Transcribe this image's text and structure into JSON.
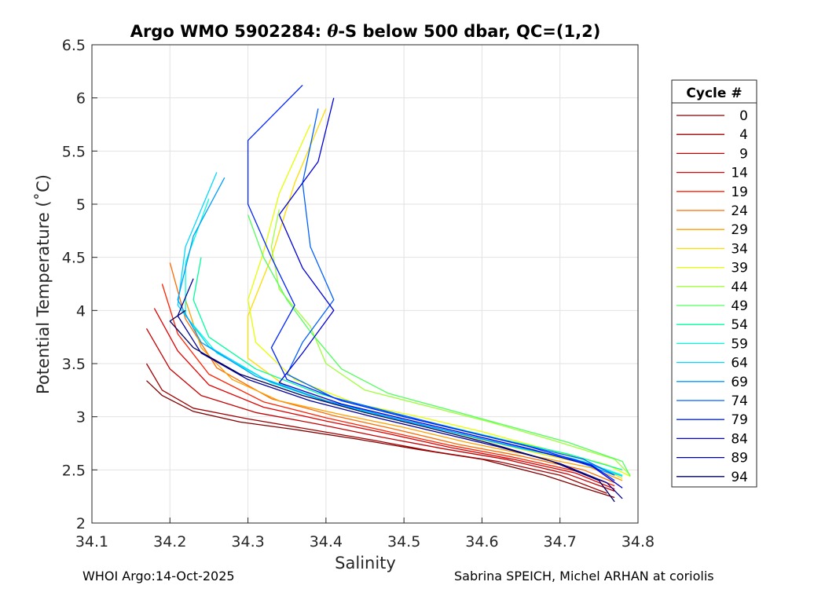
{
  "chart_data": {
    "type": "line",
    "title": {
      "prefix": "Argo WMO 5902284: ",
      "theta": "θ",
      "suffix": "-S below 500 dbar,  QC=(1,2)"
    },
    "xlabel": "Salinity",
    "ylabel": "Potential Temperature (˚C)",
    "xlim": [
      34.1,
      34.8
    ],
    "ylim": [
      2.0,
      6.5
    ],
    "xticks": [
      {
        "value": 34.1,
        "label": "34.1"
      },
      {
        "value": 34.2,
        "label": "34.2"
      },
      {
        "value": 34.3,
        "label": "34.3"
      },
      {
        "value": 34.4,
        "label": "34.4"
      },
      {
        "value": 34.5,
        "label": "34.5"
      },
      {
        "value": 34.6,
        "label": "34.6"
      },
      {
        "value": 34.7,
        "label": "34.7"
      },
      {
        "value": 34.8,
        "label": "34.8"
      }
    ],
    "yticks": [
      {
        "value": 2.0,
        "label": "2"
      },
      {
        "value": 2.5,
        "label": "2.5"
      },
      {
        "value": 3.0,
        "label": "3"
      },
      {
        "value": 3.5,
        "label": "3.5"
      },
      {
        "value": 4.0,
        "label": "4"
      },
      {
        "value": 4.5,
        "label": "4.5"
      },
      {
        "value": 5.0,
        "label": "5"
      },
      {
        "value": 5.5,
        "label": "5.5"
      },
      {
        "value": 6.0,
        "label": "6"
      },
      {
        "value": 6.5,
        "label": "6.5"
      }
    ],
    "grid": true,
    "legend_title": "Cycle #",
    "legend_position": "outside-right",
    "series": [
      {
        "name": "0",
        "color": "#800000",
        "points": [
          [
            34.17,
            3.34
          ],
          [
            34.19,
            3.2
          ],
          [
            34.23,
            3.05
          ],
          [
            34.29,
            2.95
          ],
          [
            34.36,
            2.88
          ],
          [
            34.44,
            2.79
          ],
          [
            34.52,
            2.69
          ],
          [
            34.6,
            2.6
          ],
          [
            34.68,
            2.45
          ],
          [
            34.73,
            2.33
          ],
          [
            34.77,
            2.24
          ]
        ]
      },
      {
        "name": "4",
        "color": "#a00000",
        "points": [
          [
            34.17,
            3.5
          ],
          [
            34.19,
            3.25
          ],
          [
            34.23,
            3.08
          ],
          [
            34.3,
            2.98
          ],
          [
            34.38,
            2.88
          ],
          [
            34.46,
            2.78
          ],
          [
            34.54,
            2.67
          ],
          [
            34.62,
            2.58
          ],
          [
            34.7,
            2.45
          ],
          [
            34.76,
            2.28
          ]
        ]
      },
      {
        "name": "9",
        "color": "#c40000",
        "points": [
          [
            34.17,
            3.83
          ],
          [
            34.2,
            3.45
          ],
          [
            34.24,
            3.2
          ],
          [
            34.31,
            3.04
          ],
          [
            34.39,
            2.93
          ],
          [
            34.47,
            2.81
          ],
          [
            34.55,
            2.7
          ],
          [
            34.63,
            2.6
          ],
          [
            34.71,
            2.46
          ],
          [
            34.77,
            2.3
          ]
        ]
      },
      {
        "name": "14",
        "color": "#e00000",
        "points": [
          [
            34.18,
            4.02
          ],
          [
            34.21,
            3.62
          ],
          [
            34.25,
            3.3
          ],
          [
            34.32,
            3.09
          ],
          [
            34.4,
            2.96
          ],
          [
            34.48,
            2.84
          ],
          [
            34.56,
            2.71
          ],
          [
            34.64,
            2.6
          ],
          [
            34.72,
            2.47
          ],
          [
            34.77,
            2.32
          ]
        ]
      },
      {
        "name": "19",
        "color": "#ff2000",
        "points": [
          [
            34.19,
            4.25
          ],
          [
            34.21,
            3.78
          ],
          [
            34.25,
            3.4
          ],
          [
            34.32,
            3.14
          ],
          [
            34.4,
            2.99
          ],
          [
            34.48,
            2.86
          ],
          [
            34.56,
            2.73
          ],
          [
            34.64,
            2.62
          ],
          [
            34.72,
            2.49
          ],
          [
            34.77,
            2.35
          ]
        ]
      },
      {
        "name": "24",
        "color": "#ff6a00",
        "points": [
          [
            34.2,
            4.45
          ],
          [
            34.22,
            3.92
          ],
          [
            34.26,
            3.46
          ],
          [
            34.33,
            3.17
          ],
          [
            34.41,
            3.01
          ],
          [
            34.49,
            2.88
          ],
          [
            34.57,
            2.74
          ],
          [
            34.65,
            2.63
          ],
          [
            34.73,
            2.5
          ],
          [
            34.77,
            2.38
          ]
        ]
      },
      {
        "name": "29",
        "color": "#ff9f00",
        "points": [
          [
            34.22,
            4.1
          ],
          [
            34.24,
            3.65
          ],
          [
            34.28,
            3.35
          ],
          [
            34.34,
            3.15
          ],
          [
            34.42,
            3.02
          ],
          [
            34.5,
            2.9
          ],
          [
            34.58,
            2.76
          ],
          [
            34.66,
            2.64
          ],
          [
            34.74,
            2.52
          ],
          [
            34.78,
            2.4
          ]
        ]
      },
      {
        "name": "34",
        "color": "#ffdc00",
        "points": [
          [
            34.4,
            5.9
          ],
          [
            34.36,
            5.2
          ],
          [
            34.33,
            4.5
          ],
          [
            34.3,
            3.95
          ],
          [
            34.3,
            3.55
          ],
          [
            34.35,
            3.28
          ],
          [
            34.43,
            3.08
          ],
          [
            34.51,
            2.95
          ],
          [
            34.59,
            2.8
          ],
          [
            34.67,
            2.66
          ],
          [
            34.75,
            2.53
          ],
          [
            34.78,
            2.42
          ]
        ]
      },
      {
        "name": "39",
        "color": "#e5ff00",
        "points": [
          [
            34.38,
            5.75
          ],
          [
            34.34,
            5.1
          ],
          [
            34.32,
            4.55
          ],
          [
            34.3,
            4.1
          ],
          [
            34.31,
            3.7
          ],
          [
            34.36,
            3.35
          ],
          [
            34.44,
            3.12
          ],
          [
            34.52,
            3.0
          ],
          [
            34.6,
            2.86
          ],
          [
            34.68,
            2.7
          ],
          [
            34.76,
            2.55
          ],
          [
            34.79,
            2.44
          ]
        ]
      },
      {
        "name": "44",
        "color": "#9fff3c",
        "points": [
          [
            34.34,
            4.95
          ],
          [
            34.33,
            4.6
          ],
          [
            34.34,
            4.2
          ],
          [
            34.38,
            3.85
          ],
          [
            34.4,
            3.5
          ],
          [
            34.45,
            3.25
          ],
          [
            34.53,
            3.1
          ],
          [
            34.61,
            2.95
          ],
          [
            34.69,
            2.78
          ],
          [
            34.77,
            2.6
          ],
          [
            34.79,
            2.45
          ]
        ]
      },
      {
        "name": "49",
        "color": "#50ff5a",
        "points": [
          [
            34.3,
            4.9
          ],
          [
            34.32,
            4.5
          ],
          [
            34.35,
            4.1
          ],
          [
            34.38,
            3.8
          ],
          [
            34.42,
            3.45
          ],
          [
            34.48,
            3.22
          ],
          [
            34.55,
            3.08
          ],
          [
            34.63,
            2.92
          ],
          [
            34.71,
            2.76
          ],
          [
            34.78,
            2.58
          ],
          [
            34.79,
            2.44
          ]
        ]
      },
      {
        "name": "54",
        "color": "#00ff9c",
        "points": [
          [
            34.24,
            4.5
          ],
          [
            34.23,
            4.1
          ],
          [
            34.25,
            3.75
          ],
          [
            34.31,
            3.45
          ],
          [
            34.39,
            3.22
          ],
          [
            34.47,
            3.06
          ],
          [
            34.55,
            2.92
          ],
          [
            34.63,
            2.78
          ],
          [
            34.71,
            2.65
          ],
          [
            34.78,
            2.5
          ]
        ]
      },
      {
        "name": "59",
        "color": "#00ffd8",
        "points": [
          [
            34.25,
            5.05
          ],
          [
            34.22,
            4.45
          ],
          [
            34.22,
            3.95
          ],
          [
            34.26,
            3.6
          ],
          [
            34.33,
            3.32
          ],
          [
            34.41,
            3.12
          ],
          [
            34.49,
            2.98
          ],
          [
            34.57,
            2.84
          ],
          [
            34.65,
            2.7
          ],
          [
            34.73,
            2.58
          ],
          [
            34.78,
            2.45
          ]
        ]
      },
      {
        "name": "64",
        "color": "#00d8ff",
        "points": [
          [
            34.26,
            5.3
          ],
          [
            34.22,
            4.6
          ],
          [
            34.21,
            4.05
          ],
          [
            34.25,
            3.66
          ],
          [
            34.32,
            3.36
          ],
          [
            34.4,
            3.15
          ],
          [
            34.48,
            3.0
          ],
          [
            34.56,
            2.86
          ],
          [
            34.64,
            2.72
          ],
          [
            34.72,
            2.6
          ],
          [
            34.78,
            2.44
          ]
        ]
      },
      {
        "name": "69",
        "color": "#009cff",
        "points": [
          [
            34.27,
            5.25
          ],
          [
            34.23,
            4.7
          ],
          [
            34.21,
            4.1
          ],
          [
            34.24,
            3.7
          ],
          [
            34.31,
            3.38
          ],
          [
            34.39,
            3.17
          ],
          [
            34.47,
            3.02
          ],
          [
            34.55,
            2.88
          ],
          [
            34.63,
            2.74
          ],
          [
            34.71,
            2.61
          ],
          [
            34.77,
            2.45
          ]
        ]
      },
      {
        "name": "74",
        "color": "#0060ff",
        "points": [
          [
            34.39,
            5.9
          ],
          [
            34.37,
            5.2
          ],
          [
            34.38,
            4.6
          ],
          [
            34.41,
            4.1
          ],
          [
            34.37,
            3.7
          ],
          [
            34.35,
            3.4
          ],
          [
            34.41,
            3.18
          ],
          [
            34.49,
            3.03
          ],
          [
            34.57,
            2.88
          ],
          [
            34.65,
            2.74
          ],
          [
            34.73,
            2.6
          ],
          [
            34.77,
            2.45
          ]
        ]
      },
      {
        "name": "79",
        "color": "#0024ff",
        "points": [
          [
            34.37,
            6.12
          ],
          [
            34.3,
            5.6
          ],
          [
            34.3,
            5.0
          ],
          [
            34.33,
            4.5
          ],
          [
            34.36,
            4.05
          ],
          [
            34.33,
            3.65
          ],
          [
            34.35,
            3.35
          ],
          [
            34.42,
            3.15
          ],
          [
            34.5,
            3.0
          ],
          [
            34.58,
            2.86
          ],
          [
            34.66,
            2.72
          ],
          [
            34.74,
            2.55
          ],
          [
            34.77,
            2.4
          ]
        ]
      },
      {
        "name": "84",
        "color": "#0000d8",
        "points": [
          [
            34.41,
            6.0
          ],
          [
            34.39,
            5.4
          ],
          [
            34.34,
            4.9
          ],
          [
            34.37,
            4.4
          ],
          [
            34.41,
            4.0
          ],
          [
            34.37,
            3.6
          ],
          [
            34.34,
            3.32
          ],
          [
            34.42,
            3.12
          ],
          [
            34.5,
            2.98
          ],
          [
            34.58,
            2.84
          ],
          [
            34.66,
            2.7
          ],
          [
            34.74,
            2.54
          ],
          [
            34.78,
            2.33
          ]
        ]
      },
      {
        "name": "89",
        "color": "#00009c",
        "points": [
          [
            34.23,
            4.3
          ],
          [
            34.21,
            3.95
          ],
          [
            34.24,
            3.6
          ],
          [
            34.3,
            3.35
          ],
          [
            34.38,
            3.15
          ],
          [
            34.46,
            3.0
          ],
          [
            34.54,
            2.86
          ],
          [
            34.62,
            2.72
          ],
          [
            34.7,
            2.56
          ],
          [
            34.76,
            2.38
          ],
          [
            34.78,
            2.23
          ]
        ]
      },
      {
        "name": "94",
        "color": "#000064",
        "points": [
          [
            34.22,
            4.0
          ],
          [
            34.2,
            3.9
          ],
          [
            34.23,
            3.65
          ],
          [
            34.29,
            3.4
          ],
          [
            34.37,
            3.2
          ],
          [
            34.45,
            3.04
          ],
          [
            34.53,
            2.9
          ],
          [
            34.61,
            2.75
          ],
          [
            34.69,
            2.58
          ],
          [
            34.75,
            2.4
          ],
          [
            34.77,
            2.2
          ]
        ]
      }
    ]
  },
  "footer": {
    "left": "WHOI Argo:14-Oct-2025",
    "right": "Sabrina SPEICH, Michel ARHAN at coriolis"
  }
}
